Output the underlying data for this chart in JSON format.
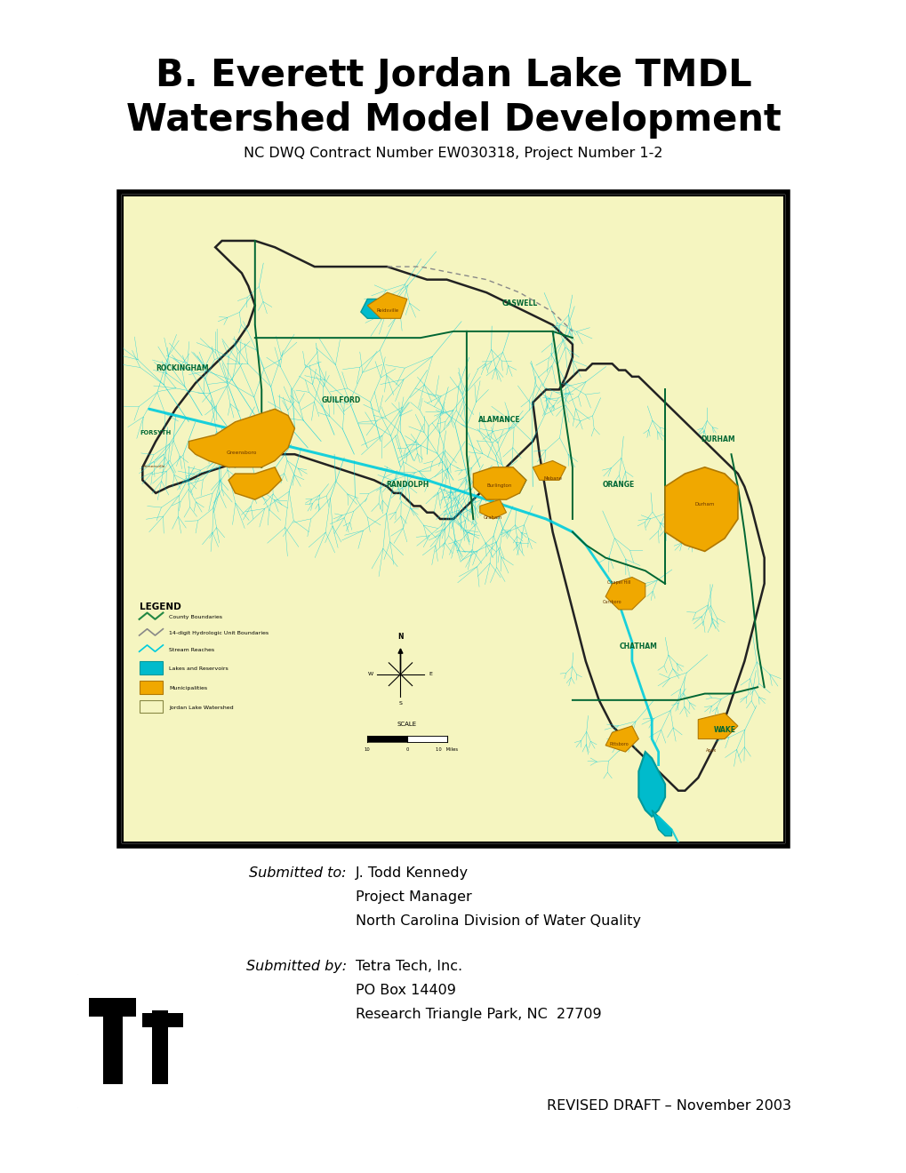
{
  "title_line1": "B. Everett Jordan Lake TMDL",
  "title_line2": "Watershed Model Development",
  "subtitle": "NC DWQ Contract Number EW030318, Project Number 1-2",
  "title_fontsize": 30,
  "subtitle_fontsize": 11.5,
  "background_color": "#ffffff",
  "submitted_to_label": "Submitted to:",
  "submitted_to_name": "J. Todd Kennedy",
  "submitted_to_line2": "Project Manager",
  "submitted_to_line3": "North Carolina Division of Water Quality",
  "submitted_by_label": "Submitted by:",
  "submitted_by_name": "Tetra Tech, Inc.",
  "submitted_by_line2": "PO Box 14409",
  "submitted_by_line3": "Research Triangle Park, NC  27709",
  "footer": "REVISED DRAFT – November 2003",
  "map_watershed_light": "#f5f5c0",
  "map_stream_color": "#00ccdd",
  "map_lake_color": "#00bbcc",
  "map_muni_color": "#f0a800",
  "map_muni_edge": "#b07800",
  "map_county_color": "#006633",
  "map_border_color": "#000000",
  "body_fontsize": 11.5
}
